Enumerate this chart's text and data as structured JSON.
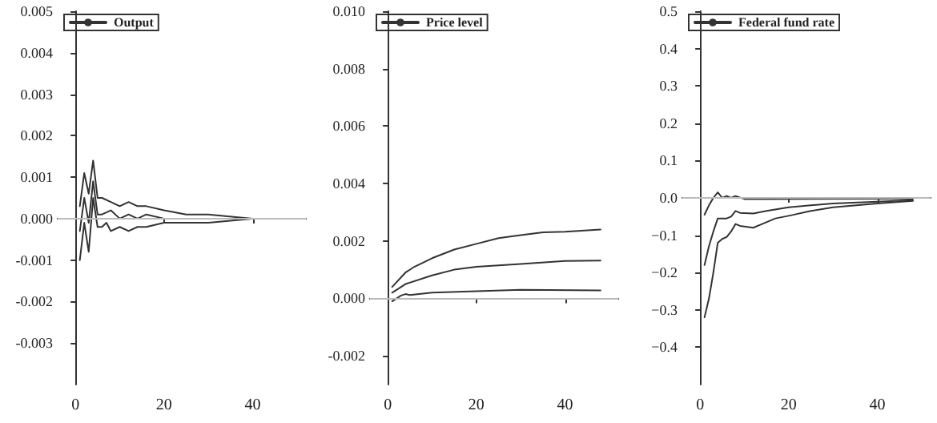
{
  "chart_data": [
    {
      "type": "line",
      "legend": "top left",
      "marker": "none",
      "grid": false,
      "xlim": [
        -4,
        52
      ],
      "xticks": [
        0,
        20,
        40
      ],
      "ylim": [
        -0.004,
        0.005
      ],
      "yticks": [
        {
          "value": 0.005,
          "label": "0.005"
        },
        {
          "value": 0.004,
          "label": "0.004"
        },
        {
          "value": 0.003,
          "label": "0.003"
        },
        {
          "value": 0.002,
          "label": "0.002"
        },
        {
          "value": 0.001,
          "label": "0.001"
        },
        {
          "value": 0,
          "label": "0.000"
        },
        {
          "value": -0.001,
          "label": "-0.001"
        },
        {
          "value": -0.002,
          "label": "-0.002"
        },
        {
          "value": -0.003,
          "label": "-0.003"
        }
      ],
      "ref_lines": [
        {
          "axis": "y",
          "value": 0,
          "color": "#bbbbbb"
        }
      ],
      "series": [
        {
          "color": "#333333",
          "x": [
            1,
            2,
            3,
            4,
            5,
            6,
            8,
            10,
            12,
            14,
            16,
            20,
            25,
            30,
            40,
            48
          ],
          "values": [
            0.0003,
            0.0011,
            0.0006,
            0.0014,
            0.0005,
            0.0005,
            0.0004,
            0.0003,
            0.0004,
            0.0003,
            0.0003,
            0.0002,
            0.0001,
            0.0001,
            0,
            0
          ]
        },
        {
          "name": "Output",
          "color": "#333333",
          "x": [
            1,
            2,
            3,
            4,
            5,
            6,
            8,
            10,
            12,
            14,
            16,
            20,
            30,
            48
          ],
          "values": [
            -0.0003,
            0.0005,
            -0.0001,
            0.0009,
            0.0001,
            0.0001,
            0.0002,
            0,
            0.0001,
            0,
            0.0001,
            0,
            0,
            0
          ]
        },
        {
          "color": "#333333",
          "x": [
            1,
            2,
            3,
            4,
            5,
            6,
            7,
            8,
            10,
            12,
            14,
            16,
            20,
            25,
            30,
            40,
            48
          ],
          "values": [
            -0.001,
            -0.0001,
            -0.0008,
            0.0005,
            -0.0002,
            -0.0002,
            -0.0001,
            -0.0003,
            -0.0002,
            -0.0003,
            -0.0002,
            -0.0002,
            -0.0001,
            -0.0001,
            -0.0001,
            0,
            0
          ]
        }
      ]
    },
    {
      "type": "line",
      "legend": "top left",
      "marker": "none",
      "grid": false,
      "xlim": [
        -4,
        52
      ],
      "xticks": [
        0,
        20,
        40
      ],
      "ylim": [
        -0.003,
        0.01
      ],
      "yticks": [
        {
          "value": 0.01,
          "label": "0.010"
        },
        {
          "value": 0.008,
          "label": "0.008"
        },
        {
          "value": 0.006,
          "label": "0.006"
        },
        {
          "value": 0.004,
          "label": "0.004"
        },
        {
          "value": 0.002,
          "label": "0.002"
        },
        {
          "value": 0,
          "label": "0.000"
        },
        {
          "value": -0.002,
          "label": "-0.002"
        }
      ],
      "ref_lines": [
        {
          "axis": "y",
          "value": 0,
          "color": "#bbbbbb"
        }
      ],
      "series": [
        {
          "color": "#333333",
          "x": [
            1,
            4,
            6,
            10,
            15,
            20,
            25,
            30,
            35,
            40,
            48
          ],
          "values": [
            0.0004,
            0.0009,
            0.0011,
            0.0014,
            0.0017,
            0.0019,
            0.0021,
            0.0022,
            0.0023,
            0.00232,
            0.0024
          ]
        },
        {
          "name": "Price level",
          "color": "#333333",
          "x": [
            1,
            4,
            10,
            15,
            20,
            30,
            40,
            48
          ],
          "values": [
            0.0002,
            0.0005,
            0.0008,
            0.001,
            0.0011,
            0.0012,
            0.0013,
            0.00132
          ]
        },
        {
          "color": "#333333",
          "x": [
            1,
            3,
            4,
            5,
            10,
            20,
            30,
            48
          ],
          "values": [
            -0.0001,
            0.0001,
            0.00015,
            0.00012,
            0.0002,
            0.00025,
            0.0003,
            0.00028
          ]
        }
      ]
    },
    {
      "type": "line",
      "legend": "top left",
      "marker": "none",
      "grid": false,
      "xlim": [
        -4,
        52
      ],
      "xticks": [
        0,
        20,
        40
      ],
      "ylim": [
        -0.5,
        0.5
      ],
      "yticks": [
        {
          "value": 0.5,
          "label": "0.5"
        },
        {
          "value": 0.4,
          "label": "0.4"
        },
        {
          "value": 0.3,
          "label": "0.3"
        },
        {
          "value": 0.2,
          "label": "0.2"
        },
        {
          "value": 0.1,
          "label": "0.1"
        },
        {
          "value": 0,
          "label": "0.0"
        },
        {
          "value": -0.1,
          "label": "−0.1"
        },
        {
          "value": -0.2,
          "label": "−0.2"
        },
        {
          "value": -0.3,
          "label": "−0.3"
        },
        {
          "value": -0.4,
          "label": "−0.4"
        }
      ],
      "ref_lines": [
        {
          "axis": "y",
          "value": 0,
          "color": "#bbbbbb"
        }
      ],
      "series": [
        {
          "color": "#333333",
          "x": [
            1,
            2,
            3,
            4,
            5,
            6,
            7,
            8,
            10,
            15,
            48
          ],
          "values": [
            -0.045,
            -0.02,
            0,
            0.015,
            0,
            0.005,
            0,
            0.005,
            -0.003,
            -0.003,
            -0.002
          ]
        },
        {
          "name": "Federal fund rate",
          "color": "#333333",
          "x": [
            1,
            2,
            3,
            4,
            6,
            7,
            8,
            9,
            12,
            15,
            20,
            30,
            40,
            48
          ],
          "values": [
            -0.18,
            -0.13,
            -0.09,
            -0.055,
            -0.055,
            -0.05,
            -0.035,
            -0.04,
            -0.042,
            -0.035,
            -0.025,
            -0.015,
            -0.01,
            -0.006
          ]
        },
        {
          "color": "#333333",
          "x": [
            1,
            2,
            3,
            4,
            5,
            6,
            7,
            8,
            9,
            12,
            14,
            17,
            20,
            25,
            30,
            40,
            48
          ],
          "values": [
            -0.32,
            -0.27,
            -0.2,
            -0.12,
            -0.11,
            -0.105,
            -0.09,
            -0.07,
            -0.075,
            -0.08,
            -0.07,
            -0.055,
            -0.048,
            -0.035,
            -0.025,
            -0.015,
            -0.008
          ]
        }
      ]
    }
  ]
}
